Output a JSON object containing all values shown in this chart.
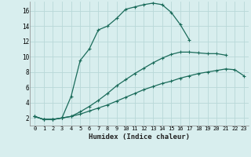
{
  "xlabel": "Humidex (Indice chaleur)",
  "bg_color": "#d8eeee",
  "line_color": "#1a6b5a",
  "grid_color": "#b8d8d8",
  "xlim": [
    -0.5,
    23.5
  ],
  "ylim": [
    1.0,
    17.2
  ],
  "yticks": [
    2,
    4,
    6,
    8,
    10,
    12,
    14,
    16
  ],
  "xticks": [
    0,
    1,
    2,
    3,
    4,
    5,
    6,
    7,
    8,
    9,
    10,
    11,
    12,
    13,
    14,
    15,
    16,
    17,
    18,
    19,
    20,
    21,
    22,
    23
  ],
  "curve1_x": [
    0,
    1,
    2,
    3,
    4,
    5,
    6,
    7,
    8,
    9,
    10,
    11,
    12,
    13,
    14,
    15,
    16,
    17
  ],
  "curve1_y": [
    2.2,
    1.8,
    1.8,
    2.0,
    4.8,
    9.5,
    11.0,
    13.5,
    14.0,
    15.0,
    16.2,
    16.5,
    16.8,
    17.0,
    16.8,
    15.8,
    14.2,
    12.2
  ],
  "curve2_x": [
    0,
    1,
    2,
    3,
    4,
    5,
    6,
    7,
    8,
    9,
    10,
    11,
    12,
    13,
    14,
    15,
    16,
    17,
    18,
    19,
    20,
    21
  ],
  "curve2_y": [
    2.2,
    1.8,
    1.8,
    2.0,
    2.2,
    2.8,
    3.5,
    4.3,
    5.2,
    6.2,
    7.0,
    7.8,
    8.5,
    9.2,
    9.8,
    10.3,
    10.6,
    10.6,
    10.5,
    10.4,
    10.4,
    10.2
  ],
  "curve3_x": [
    0,
    1,
    2,
    3,
    4,
    5,
    6,
    7,
    8,
    9,
    10,
    11,
    12,
    13,
    14,
    15,
    16,
    17,
    18,
    19,
    20,
    21,
    22,
    23
  ],
  "curve3_y": [
    2.2,
    1.8,
    1.8,
    2.0,
    2.2,
    2.5,
    2.9,
    3.3,
    3.7,
    4.2,
    4.7,
    5.2,
    5.7,
    6.1,
    6.5,
    6.8,
    7.2,
    7.5,
    7.8,
    8.0,
    8.2,
    8.4,
    8.3,
    7.5
  ]
}
